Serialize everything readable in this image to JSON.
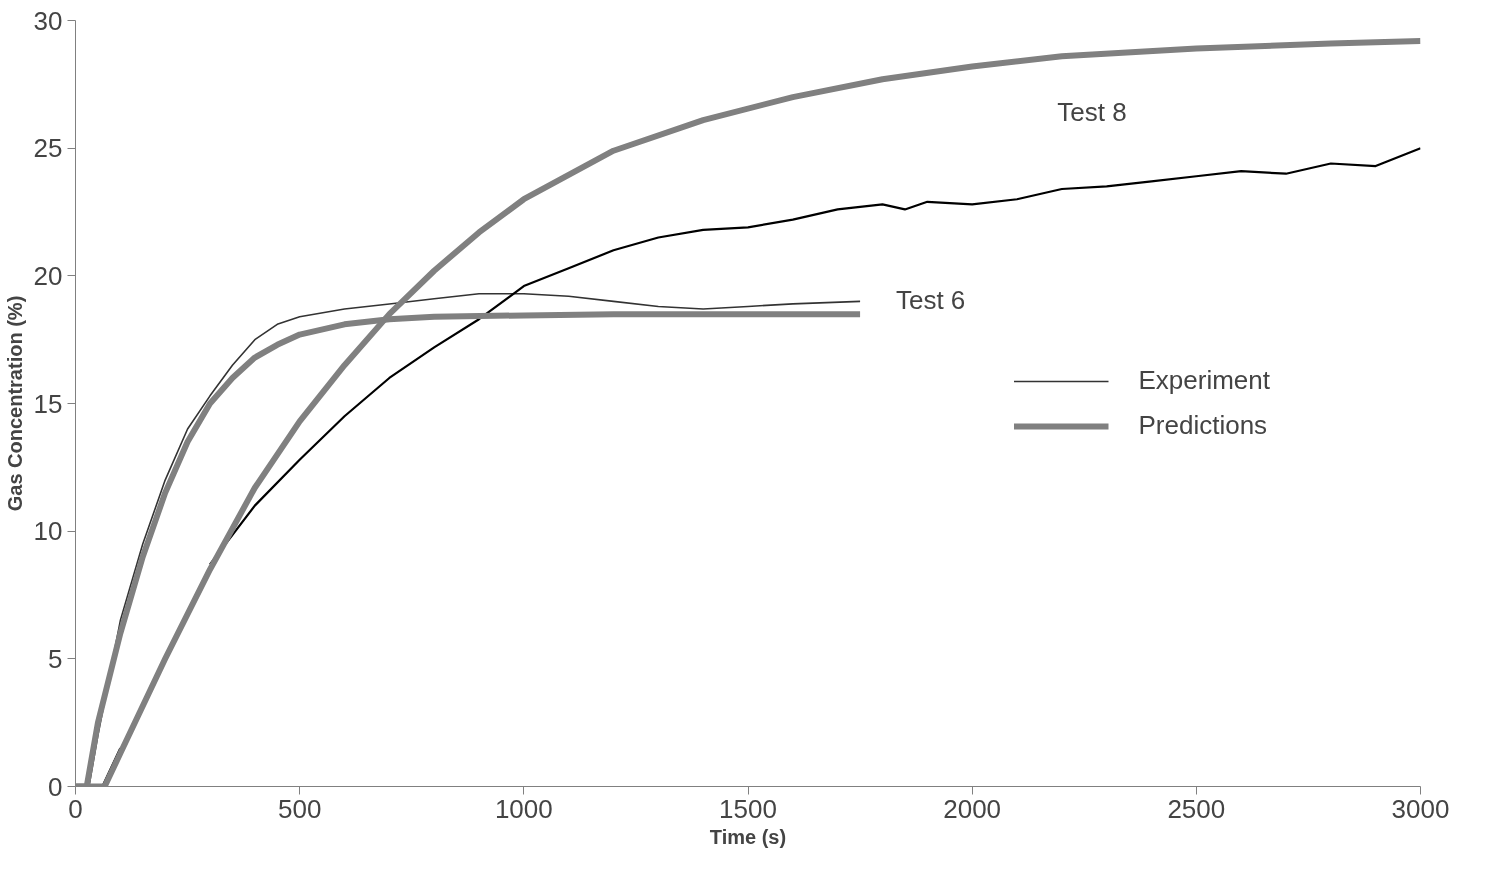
{
  "chart_data": {
    "type": "line",
    "xlabel": "Time (s)",
    "ylabel": "Gas Concentration (%)",
    "xlim": [
      0,
      3000
    ],
    "xticks": [
      0,
      500,
      1000,
      1500,
      2000,
      2500,
      3000
    ],
    "ylim": [
      0,
      30
    ],
    "yticks": [
      0,
      5,
      10,
      15,
      20,
      25,
      30
    ],
    "grid": false,
    "legend": "right",
    "marker": "none",
    "line_style": "solid",
    "series": [
      {
        "name": "Experiment",
        "color": "#333333",
        "x": [
          0,
          30,
          50,
          100,
          150,
          200,
          250,
          300,
          350,
          400,
          450,
          500,
          600,
          700,
          800,
          900,
          1000,
          1100,
          1200,
          1300,
          1400,
          1500,
          1600,
          1750
        ],
        "values": [
          0,
          0,
          2,
          6.5,
          9.5,
          12,
          14,
          15.3,
          16.5,
          17.5,
          18.1,
          18.4,
          18.7,
          18.9,
          19.1,
          19.3,
          19.3,
          19.2,
          19.0,
          18.8,
          18.7,
          18.8,
          18.9,
          19.0
        ]
      },
      {
        "color": "#000000",
        "x": [
          0,
          60,
          100,
          200,
          300,
          400,
          500,
          600,
          700,
          800,
          900,
          1000,
          1100,
          1200,
          1300,
          1400,
          1500,
          1600,
          1700,
          1800,
          1850,
          1900,
          2000,
          2100,
          2200,
          2300,
          2400,
          2500,
          2600,
          2700,
          2800,
          2900,
          3000
        ],
        "values": [
          0,
          0,
          1.5,
          null,
          8.7,
          11,
          12.8,
          14.5,
          16,
          17.2,
          18.3,
          19.6,
          20.3,
          21,
          21.5,
          21.8,
          21.9,
          22.2,
          22.6,
          22.8,
          22.6,
          22.9,
          22.8,
          23.0,
          23.4,
          23.5,
          23.7,
          23.9,
          24.1,
          24.0,
          24.4,
          24.3,
          25.0
        ]
      },
      {
        "name": "Predictions",
        "color": "#808080",
        "x": [
          0,
          25,
          50,
          100,
          150,
          200,
          250,
          300,
          350,
          400,
          450,
          500,
          600,
          700,
          800,
          1000,
          1200,
          1500,
          1750
        ],
        "values": [
          0,
          0,
          2.5,
          6,
          9,
          11.5,
          13.5,
          15,
          16,
          16.8,
          17.3,
          17.7,
          18.1,
          18.3,
          18.4,
          18.45,
          18.5,
          18.5,
          18.5
        ]
      },
      {
        "color": "#808080",
        "x": [
          0,
          65,
          100,
          200,
          300,
          400,
          500,
          600,
          700,
          800,
          900,
          1000,
          1200,
          1400,
          1600,
          1800,
          2000,
          2200,
          2500,
          2800,
          3000
        ],
        "values": [
          0,
          0,
          1.3,
          5,
          8.5,
          11.7,
          14.3,
          16.5,
          18.5,
          20.2,
          21.7,
          23.0,
          24.9,
          26.1,
          27.0,
          27.7,
          28.2,
          28.6,
          28.9,
          29.1,
          29.2
        ]
      }
    ],
    "annotations": [
      "Test 6",
      "Test 8"
    ]
  }
}
